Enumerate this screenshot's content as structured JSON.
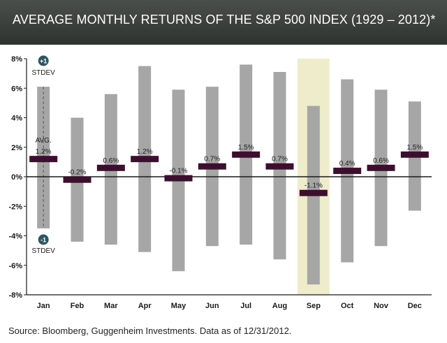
{
  "title": "AVERAGE MONTHLY RETURNS OF THE S&P 500 INDEX (1929 – 2012)*",
  "source": "Source: Bloomberg, Guggenheim Investments. Data as of 12/31/2012.",
  "colors": {
    "range_bar": "#a6a6a6",
    "avg_bar": "#3d0f2e",
    "highlight": "#efeccc",
    "stdev_badge": "#2e5660"
  },
  "chart_data": {
    "type": "bar",
    "title": "AVERAGE MONTHLY RETURNS OF THE S&P 500 INDEX (1929 – 2012)*",
    "categories": [
      "Jan",
      "Feb",
      "Mar",
      "Apr",
      "May",
      "Jun",
      "Jul",
      "Aug",
      "Sep",
      "Oct",
      "Nov",
      "Dec"
    ],
    "series": [
      {
        "name": "AVG.",
        "values": [
          1.2,
          -0.2,
          0.6,
          1.2,
          -0.1,
          0.7,
          1.5,
          0.7,
          -1.1,
          0.4,
          0.6,
          1.5
        ]
      },
      {
        "name": "+1 STDEV",
        "values": [
          6.1,
          4.0,
          5.6,
          7.5,
          5.9,
          6.1,
          7.6,
          7.1,
          4.8,
          6.6,
          5.9,
          5.1
        ]
      },
      {
        "name": "-1 STDEV",
        "values": [
          -3.5,
          -4.4,
          -4.6,
          -5.1,
          -6.4,
          -4.7,
          -4.6,
          -5.6,
          -7.3,
          -5.8,
          -4.7,
          -2.3
        ]
      }
    ],
    "value_labels": [
      "1.2%",
      "-0.2%",
      "0.6%",
      "1.2%",
      "-0.1%",
      "0.7%",
      "1.5%",
      "0.7%",
      "-1.1%",
      "0.4%",
      "0.6%",
      "1.5%"
    ],
    "ylim": [
      -8,
      8
    ],
    "yticks": [
      8,
      6,
      4,
      2,
      0,
      -2,
      -4,
      -6,
      -8
    ],
    "ytick_labels": [
      "8%",
      "6%",
      "4%",
      "2%",
      "0%",
      "-2%",
      "-4%",
      "-6%",
      "-8%"
    ],
    "highlight_category": "Sep",
    "annotations": {
      "plus_badge": "+1",
      "minus_badge": "-1",
      "stdev_label": "STDEV",
      "avg_label": "AVG."
    },
    "grid": false,
    "legend": "none"
  }
}
